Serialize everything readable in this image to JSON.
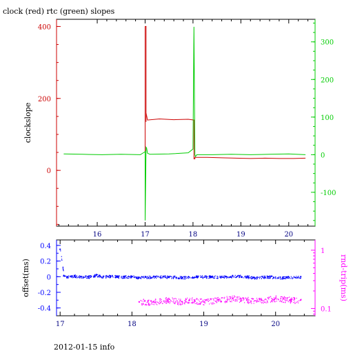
{
  "chart_data": [
    {
      "type": "line",
      "title": "clock (red) rtc (green) slopes",
      "ylabel": "clockslope",
      "x_ticks": [
        "16",
        "17",
        "18",
        "19",
        "20"
      ],
      "xlim": [
        15.15,
        20.55
      ],
      "ylim_left": [
        -155,
        420
      ],
      "ylim_right": [
        -190,
        360
      ],
      "y_ticks_left": [
        "0",
        "200",
        "400"
      ],
      "y_ticks_right": [
        "-100",
        "0",
        "100",
        "200",
        "300"
      ],
      "colors": {
        "red": "#cc0000",
        "green": "#00cc00",
        "axis": "#000000"
      },
      "series": [
        {
          "color": "red",
          "axis": "left",
          "x": [
            17.0,
            17.0,
            17.02,
            17.02,
            17.02,
            17.05,
            17.3,
            17.6,
            17.9,
            18.02,
            18.02,
            18.04,
            18.04,
            18.3,
            18.6,
            18.9,
            19.2,
            19.5,
            19.8,
            20.1,
            20.35
          ],
          "y": [
            -130,
            400,
            400,
            135,
            160,
            140,
            143,
            141,
            142,
            140,
            32,
            32,
            36,
            36,
            35,
            34,
            33,
            34,
            33,
            33,
            34
          ]
        },
        {
          "color": "green",
          "axis": "right",
          "x": [
            15.3,
            15.7,
            16.1,
            16.5,
            16.9,
            17.0,
            17.0,
            17.02,
            17.03,
            17.05,
            17.1,
            17.5,
            17.9,
            18.0,
            18.02,
            18.02,
            18.04,
            18.05,
            18.08,
            18.4,
            18.8,
            19.2,
            19.6,
            20.0,
            20.35
          ],
          "y": [
            2,
            1,
            0,
            1,
            0,
            8,
            -175,
            20,
            18,
            4,
            1,
            2,
            5,
            15,
            340,
            340,
            0,
            -5,
            0,
            0,
            1,
            0,
            1,
            2,
            0
          ]
        }
      ]
    },
    {
      "type": "scatter",
      "xlabel": "",
      "ylabel_left": "offset(ms)",
      "ylabel_right": "rnd-trip(ms)",
      "x_ticks": [
        "17",
        "18",
        "19",
        "20"
      ],
      "xlim": [
        16.95,
        20.55
      ],
      "ylim_left": [
        -0.5,
        0.47
      ],
      "y_ticks_left": [
        "0.4",
        "0.2",
        "0",
        "-0.2",
        "-0.4"
      ],
      "right_scale": "log",
      "ylim_right": [
        0.075,
        1.5
      ],
      "y_ticks_right": [
        "1",
        "0.1"
      ],
      "colors": {
        "offset": "#0000ff",
        "rndtrip": "#ff00ff"
      },
      "series": [
        {
          "name_hidden": "offset",
          "color": "offset",
          "axis": "left",
          "x": [
            17.0,
            17.05,
            17.1,
            17.2,
            17.3,
            17.4,
            17.5,
            17.6,
            17.7,
            17.8,
            17.9,
            18.0,
            18.1,
            18.3,
            18.5,
            18.7,
            18.9,
            19.1,
            19.3,
            19.5,
            19.7,
            19.9,
            20.1,
            20.35
          ],
          "y": [
            0.35,
            0.01,
            0.0,
            0.01,
            0.0,
            0.0,
            0.02,
            0.0,
            0.01,
            0.0,
            0.0,
            0.0,
            -0.01,
            0.0,
            0.0,
            -0.01,
            0.0,
            0.0,
            0.0,
            0.01,
            -0.01,
            0.0,
            -0.01,
            0.0
          ]
        },
        {
          "name_hidden": "rnd-trip",
          "color": "rndtrip",
          "axis": "right",
          "x": [
            18.1,
            18.3,
            18.5,
            18.7,
            18.8,
            19.0,
            19.2,
            19.4,
            19.6,
            19.8,
            20.0,
            20.2,
            20.35
          ],
          "y": [
            0.13,
            0.13,
            0.14,
            0.13,
            0.14,
            0.13,
            0.14,
            0.15,
            0.14,
            0.14,
            0.15,
            0.14,
            0.14
          ]
        }
      ]
    }
  ],
  "footer": "2012-01-15 info"
}
